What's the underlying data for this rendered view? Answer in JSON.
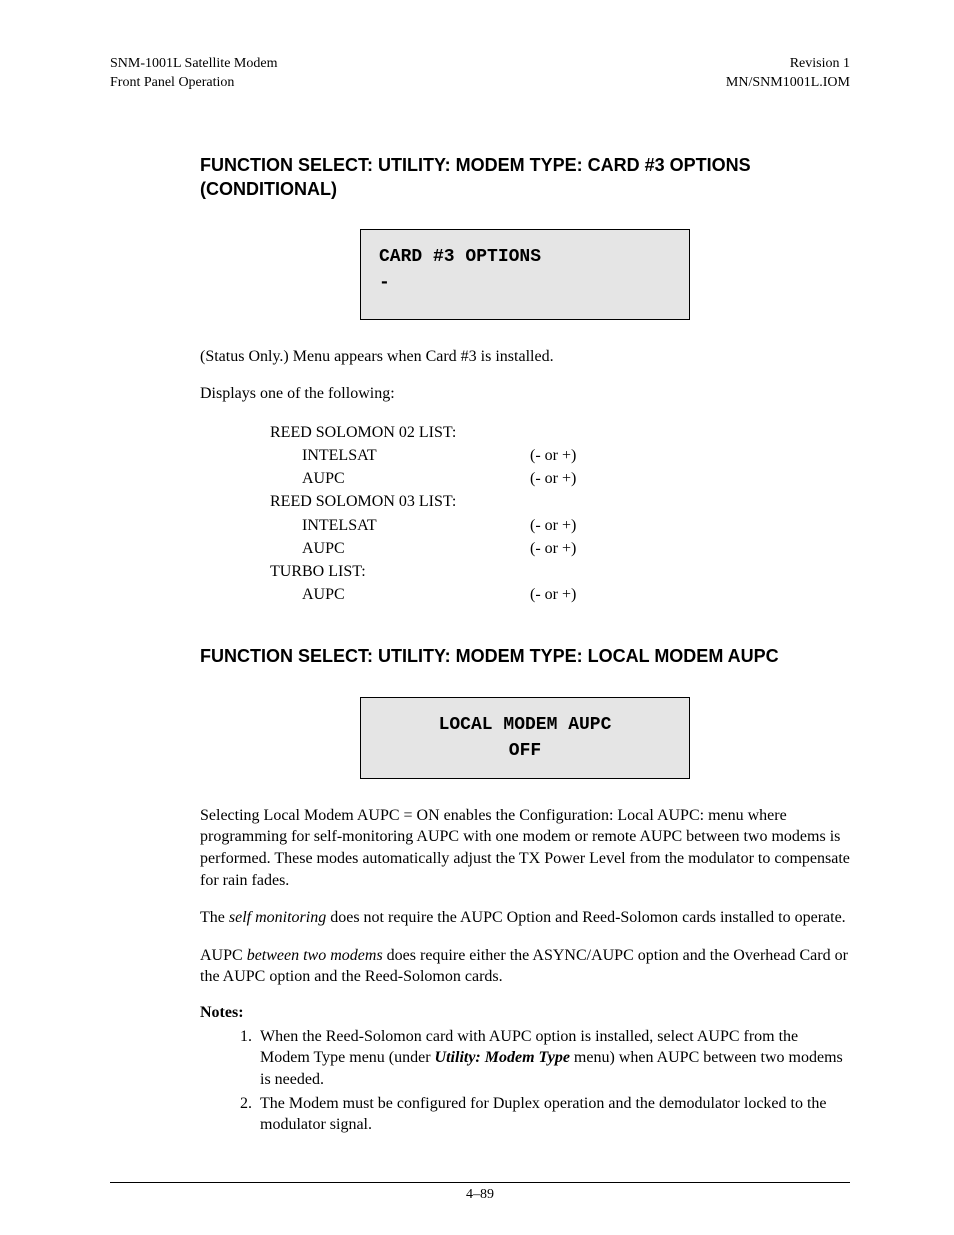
{
  "header": {
    "left1": "SNM-1001L Satellite Modem",
    "left2": "Front Panel Operation",
    "right1": "Revision 1",
    "right2": "MN/SNM1001L.IOM"
  },
  "section1": {
    "title": "FUNCTION SELECT: UTILITY: MODEM TYPE: CARD #3 OPTIONS (CONDITIONAL)",
    "lcd_line1": "CARD #3 OPTIONS",
    "lcd_line2": "-",
    "p1": "(Status Only.) Menu appears when Card #3 is installed.",
    "p2": "Displays one of the following:",
    "options": [
      {
        "label": "REED SOLOMON 02 LIST:",
        "value": "",
        "indent": false
      },
      {
        "label": "INTELSAT",
        "value": "(- or +)",
        "indent": true
      },
      {
        "label": "AUPC",
        "value": "(- or +)",
        "indent": true
      },
      {
        "label": "REED SOLOMON 03 LIST:",
        "value": "",
        "indent": false
      },
      {
        "label": "INTELSAT",
        "value": "(- or +)",
        "indent": true
      },
      {
        "label": "AUPC",
        "value": "(- or +)",
        "indent": true
      },
      {
        "label": "TURBO LIST:",
        "value": "",
        "indent": false
      },
      {
        "label": "AUPC",
        "value": "(- or +)",
        "indent": true
      }
    ]
  },
  "section2": {
    "title": "FUNCTION SELECT: UTILITY: MODEM TYPE: LOCAL MODEM AUPC",
    "lcd_line1": "LOCAL MODEM AUPC",
    "lcd_line2": "OFF",
    "p1": "Selecting Local Modem AUPC = ON enables the Configuration: Local AUPC: menu where programming for self-monitoring AUPC with one modem or remote AUPC between two modems is performed. These modes automatically adjust the TX Power Level from the modulator to compensate for rain fades.",
    "p2_pre": "The ",
    "p2_em": "self monitoring",
    "p2_post": " does not require the AUPC Option and Reed-Solomon cards installed to operate.",
    "p3_pre": "AUPC ",
    "p3_em": "between two modems",
    "p3_post": " does require either the ASYNC/AUPC option and the Overhead Card or the AUPC option and the Reed-Solomon cards.",
    "notes_label": "Notes:",
    "note1_pre": "When the Reed-Solomon card with AUPC option is installed, select AUPC from the Modem Type menu (under ",
    "note1_em": "Utility: Modem Type",
    "note1_post": " menu) when AUPC between two modems is needed.",
    "note2": "The Modem must be configured for Duplex operation and the demodulator locked to the modulator signal."
  },
  "footer": {
    "page": "4–89"
  }
}
